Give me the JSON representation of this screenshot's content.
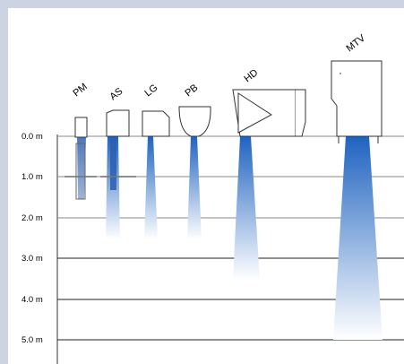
{
  "depths": [
    "0.0 m",
    "1.0 m",
    "2.0 m",
    "3.0 m",
    "4.0 m",
    "5.0 m"
  ],
  "fixtures": [
    {
      "id": "pm",
      "label": "PM",
      "depth_m": 1.5
    },
    {
      "id": "as",
      "label": "AS",
      "depth_m": 2.5
    },
    {
      "id": "lg",
      "label": "LG",
      "depth_m": 2.5
    },
    {
      "id": "pb",
      "label": "PB",
      "depth_m": 2.5
    },
    {
      "id": "hd",
      "label": "HD",
      "depth_m": 3.5
    },
    {
      "id": "mtv",
      "label": "MTV",
      "depth_m": 5.0
    }
  ],
  "colors": {
    "beam_top": "#1f63c0",
    "beam_bottom": "#ffffff",
    "frame": "#ccd3e3",
    "line": "#333333"
  }
}
